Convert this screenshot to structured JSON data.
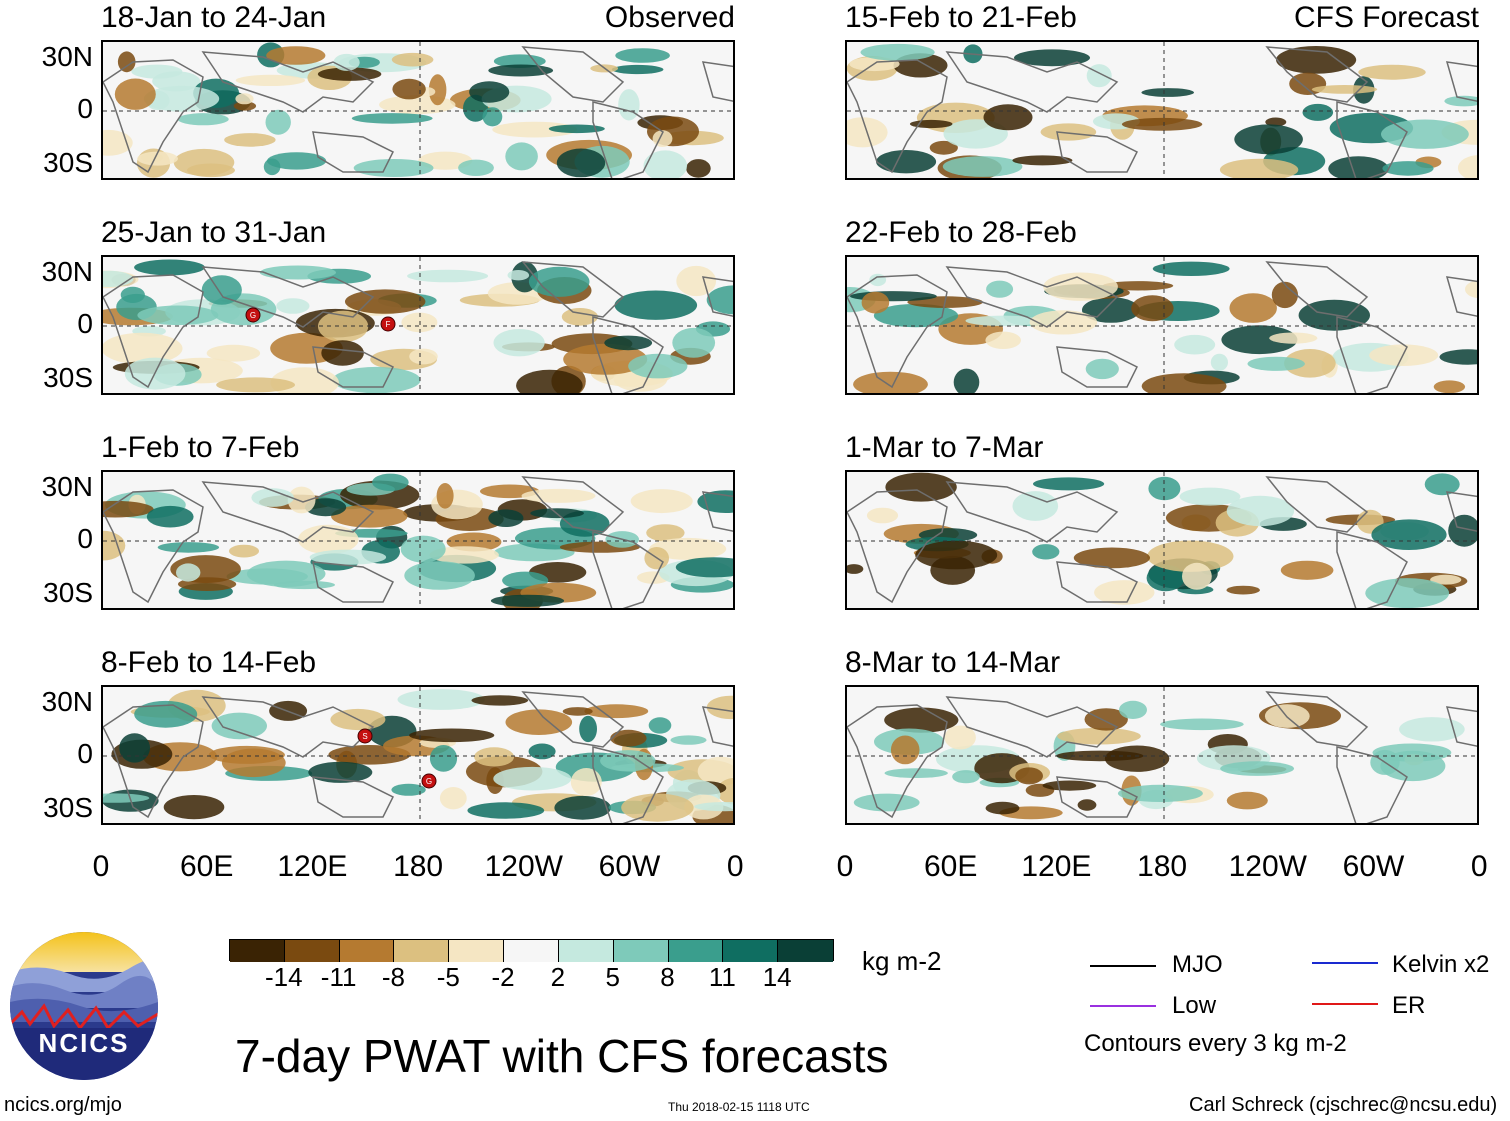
{
  "colorbar": {
    "colors": [
      "#3a2304",
      "#7a4a10",
      "#b57a30",
      "#dcc080",
      "#f5e6c3",
      "#f6f6f6",
      "#c5e9df",
      "#7ecaba",
      "#3a9e8d",
      "#0f6e61",
      "#0a3f36"
    ],
    "labels": [
      "-14",
      "-11",
      "-8",
      "-5",
      "-2",
      "2",
      "5",
      "8",
      "11",
      "14"
    ],
    "units": "kg m-2"
  },
  "axes": {
    "lat_labels": [
      "30N",
      "0",
      "30S"
    ],
    "lon_labels": [
      "0",
      "60E",
      "120E",
      "180",
      "120W",
      "60W",
      "0"
    ]
  },
  "observed": {
    "tag": "Observed",
    "panels": [
      {
        "title": "18-Jan to 24-Jan",
        "storms": []
      },
      {
        "title": "25-Jan to 31-Jan",
        "storms": [
          {
            "label": "G"
          },
          {
            "label": "F"
          }
        ]
      },
      {
        "title": "1-Feb to 7-Feb",
        "storms": []
      },
      {
        "title": "8-Feb to 14-Feb",
        "storms": [
          {
            "label": "S"
          },
          {
            "label": "G"
          }
        ]
      }
    ]
  },
  "forecast": {
    "tag": "CFS Forecast",
    "panels": [
      {
        "title": "15-Feb to 21-Feb"
      },
      {
        "title": "22-Feb to 28-Feb"
      },
      {
        "title": "1-Mar to 7-Mar"
      },
      {
        "title": "8-Mar to 14-Mar"
      }
    ]
  },
  "legend": {
    "items": [
      {
        "label": "MJO",
        "color": "#000000"
      },
      {
        "label": "Kelvin x2",
        "color": "#1a2ad0"
      },
      {
        "label": "Low",
        "color": "#9a30e0"
      },
      {
        "label": "ER",
        "color": "#e01818"
      }
    ],
    "contours_note": "Contours every 3 kg m-2"
  },
  "logo": {
    "text": "NCICS"
  },
  "footer": {
    "main_title": "7-day PWAT with CFS forecasts",
    "url": "ncics.org/mjo",
    "timestamp": "Thu 2018-02-15 1118 UTC",
    "credit": "Carl Schreck (cjschrec@ncsu.edu)"
  }
}
